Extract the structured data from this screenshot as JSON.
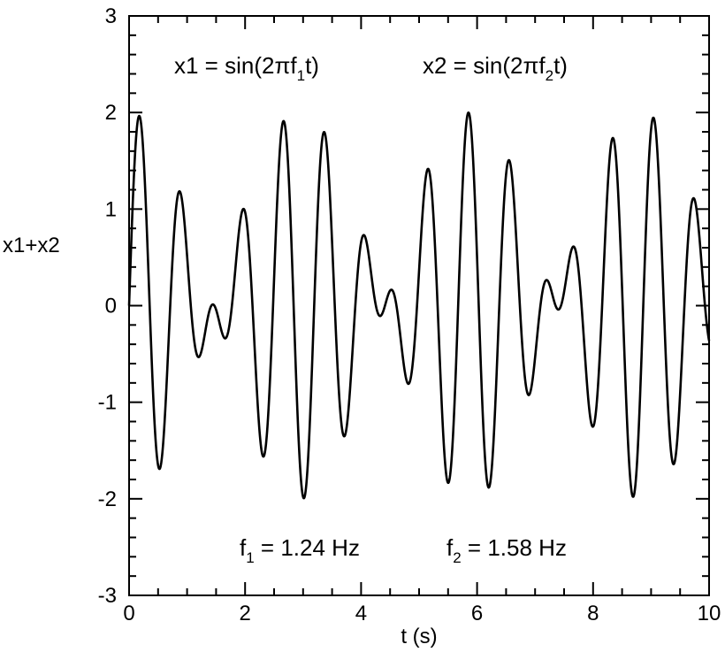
{
  "chart_data": {
    "type": "line",
    "title": "",
    "xlabel": "t (s)",
    "ylabel": "x1+x2",
    "xlim": [
      0,
      10
    ],
    "ylim": [
      -3,
      3
    ],
    "x_ticks": [
      0,
      2,
      4,
      6,
      8,
      10
    ],
    "x_tick_labels": [
      "0",
      "2",
      "4",
      "6",
      "8",
      "10"
    ],
    "y_ticks": [
      -3,
      -2,
      -1,
      0,
      1,
      2,
      3
    ],
    "y_tick_labels": [
      "-3",
      "-2",
      "-1",
      "0",
      "1",
      "2",
      "3"
    ],
    "grid": false,
    "line_color": "#000000",
    "series": [
      {
        "function": "sin(2*pi*f1*t) + sin(2*pi*f2*t)",
        "t_range": [
          0,
          10
        ],
        "f1": 1.24,
        "f2": 1.58
      }
    ],
    "annotations": {
      "eq1": {
        "main": "x1 = sin(2πf",
        "sub": "1",
        "tail": "t)"
      },
      "eq2": {
        "main": "x2 = sin(2πf",
        "sub": "2",
        "tail": "t)"
      },
      "freq1": {
        "main": "f",
        "sub": "1",
        "tail": " = 1.24 Hz"
      },
      "freq2": {
        "main": "f",
        "sub": "2",
        "tail": " = 1.58 Hz"
      }
    }
  }
}
